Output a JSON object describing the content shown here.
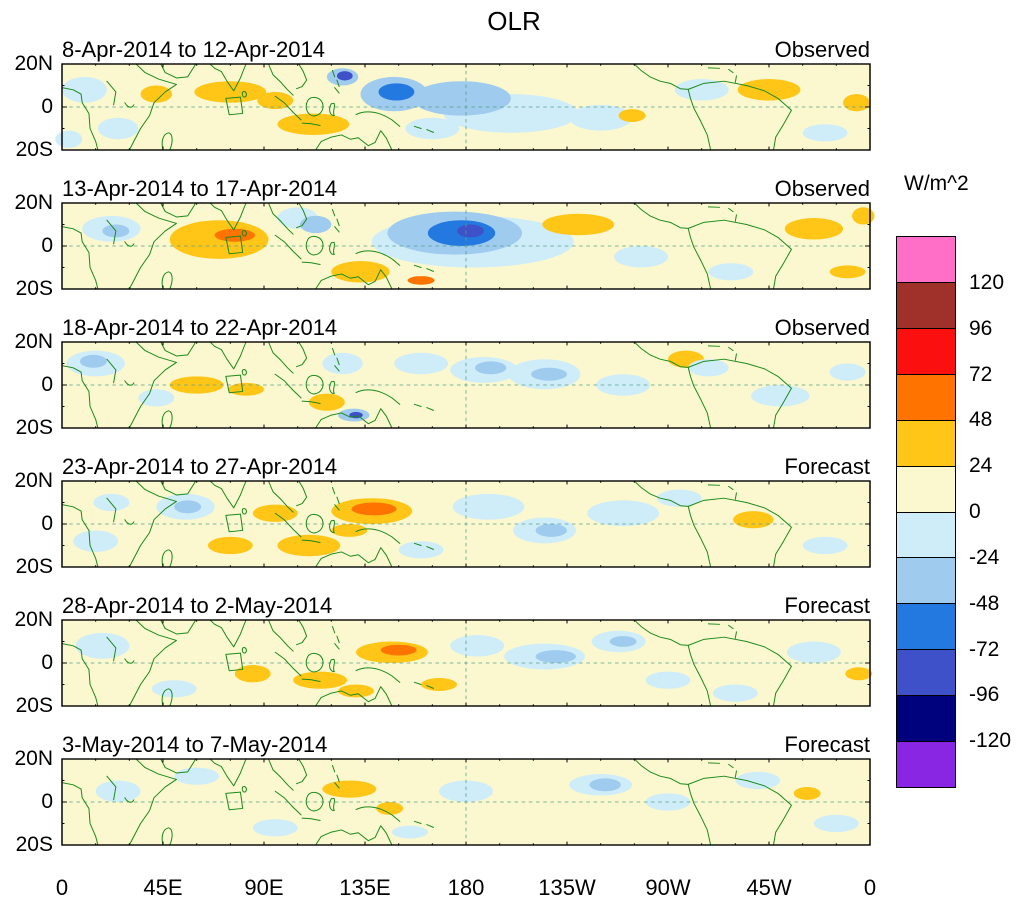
{
  "title": "OLR",
  "colorbar": {
    "unit": "W/m^2",
    "tick_labels": [
      "120",
      "96",
      "72",
      "48",
      "24",
      "0",
      "-24",
      "-48",
      "-72",
      "-96",
      "-120"
    ],
    "segment_colors_top_to_bottom": [
      "#FF6FC8",
      "#A0302A",
      "#FB0F0F",
      "#FF7300",
      "#FFC618",
      "#FBF8CF",
      "#CFECF9",
      "#9FCBEF",
      "#2479E0",
      "#3F51C8",
      "#00017D",
      "#8926E3"
    ]
  },
  "axes": {
    "x_ticks": [
      "0",
      "45E",
      "90E",
      "135E",
      "180",
      "135W",
      "90W",
      "45W",
      "0"
    ],
    "y_ticks": [
      "20N",
      "0",
      "20S"
    ]
  },
  "chart_data": {
    "type": "heatmap",
    "subtype": "filled-contour anomaly maps, 6 pentad panels",
    "title": "OLR",
    "units": "W/m^2",
    "lon_range_deg_east": [
      0,
      360
    ],
    "lat_range_deg_north": [
      -20,
      20
    ],
    "contour_interval": 24,
    "contour_levels": [
      -120,
      -96,
      -72,
      -48,
      -24,
      0,
      24,
      48,
      72,
      96,
      120
    ],
    "level_band_colors": {
      "-120": "#00017D",
      "-96": "#3F51C8",
      "-72": "#2479E0",
      "-48": "#9FCBEF",
      "-24": "#CFECF9",
      "24": "#FFC618",
      "48": "#FF7300",
      "72": "#FB0F0F"
    },
    "background_band_color": "#FBF8CF",
    "coastline_color": "#1C8A1C",
    "anomaly_format": "[lon_deg_east, lat_deg_north, lon_radius_deg, lat_radius_deg, band_wm2]",
    "panels": [
      {
        "date_range": "8-Apr-2014 to 12-Apr-2014",
        "type_label": "Observed",
        "anomalies": [
          [
            10,
            8,
            10,
            6,
            -24
          ],
          [
            25,
            -10,
            9,
            5,
            -24
          ],
          [
            3,
            -15,
            6,
            4,
            -24
          ],
          [
            42,
            6,
            7,
            4,
            24
          ],
          [
            75,
            7,
            16,
            5,
            24
          ],
          [
            95,
            3,
            8,
            4,
            24
          ],
          [
            112,
            -8,
            16,
            5,
            24
          ],
          [
            125,
            14,
            7,
            4,
            -48
          ],
          [
            126,
            14.5,
            3.5,
            2.2,
            -96
          ],
          [
            148,
            6,
            15,
            8,
            -48
          ],
          [
            149,
            7,
            8,
            4,
            -72
          ],
          [
            178,
            4,
            22,
            8,
            -48
          ],
          [
            200,
            -3,
            30,
            9,
            -24
          ],
          [
            165,
            -10,
            12,
            5,
            -24
          ],
          [
            240,
            -5,
            14,
            6,
            -24
          ],
          [
            254,
            -4,
            6,
            3,
            24
          ],
          [
            285,
            8,
            12,
            5,
            -24
          ],
          [
            315,
            8,
            14,
            5,
            24
          ],
          [
            340,
            -12,
            10,
            4,
            -24
          ],
          [
            354,
            2,
            6,
            4,
            24
          ]
        ]
      },
      {
        "date_range": "13-Apr-2014 to 17-Apr-2014",
        "type_label": "Observed",
        "anomalies": [
          [
            22,
            8,
            13,
            6,
            -24
          ],
          [
            24,
            7,
            6,
            3,
            -48
          ],
          [
            70,
            3,
            22,
            9,
            24
          ],
          [
            77,
            5,
            9,
            3,
            48
          ],
          [
            105,
            13,
            9,
            5,
            -24
          ],
          [
            113,
            10,
            7,
            4,
            -48
          ],
          [
            133,
            -12,
            13,
            5,
            24
          ],
          [
            160,
            -16,
            6,
            2,
            48
          ],
          [
            183,
            2,
            45,
            12,
            -24
          ],
          [
            175,
            6,
            30,
            10,
            -48
          ],
          [
            178,
            6,
            15,
            6,
            -72
          ],
          [
            182,
            7,
            6,
            3,
            -96
          ],
          [
            230,
            10,
            16,
            5,
            24
          ],
          [
            258,
            -5,
            12,
            5,
            -24
          ],
          [
            298,
            -12,
            10,
            4,
            -24
          ],
          [
            335,
            8,
            13,
            5,
            24
          ],
          [
            350,
            -12,
            8,
            3,
            24
          ],
          [
            357,
            14,
            5,
            4,
            24
          ]
        ]
      },
      {
        "date_range": "18-Apr-2014 to 22-Apr-2014",
        "type_label": "Observed",
        "anomalies": [
          [
            15,
            10,
            13,
            6,
            -24
          ],
          [
            14,
            11,
            6,
            3,
            -48
          ],
          [
            42,
            -6,
            8,
            4,
            -24
          ],
          [
            60,
            0,
            12,
            4,
            24
          ],
          [
            82,
            -2,
            8,
            3,
            24
          ],
          [
            118,
            -8,
            8,
            4,
            24
          ],
          [
            130,
            -14,
            7,
            3,
            -48
          ],
          [
            131,
            -14,
            3,
            1.5,
            -96
          ],
          [
            125,
            10,
            9,
            5,
            -24
          ],
          [
            160,
            10,
            12,
            5,
            -24
          ],
          [
            188,
            7,
            15,
            6,
            -24
          ],
          [
            191,
            8,
            7,
            3,
            -48
          ],
          [
            215,
            5,
            16,
            7,
            -24
          ],
          [
            217,
            5,
            8,
            3,
            -48
          ],
          [
            250,
            0,
            12,
            5,
            -24
          ],
          [
            278,
            12,
            8,
            4,
            24
          ],
          [
            288,
            8,
            9,
            4,
            -24
          ],
          [
            320,
            -5,
            13,
            5,
            -24
          ],
          [
            350,
            6,
            8,
            4,
            -24
          ]
        ]
      },
      {
        "date_range": "23-Apr-2014 to 27-Apr-2014",
        "type_label": "Forecast",
        "anomalies": [
          [
            15,
            -8,
            10,
            5,
            -24
          ],
          [
            22,
            10,
            8,
            4,
            -24
          ],
          [
            55,
            8,
            13,
            6,
            -24
          ],
          [
            56,
            8,
            6,
            3,
            -48
          ],
          [
            75,
            -10,
            10,
            4,
            24
          ],
          [
            95,
            5,
            10,
            4,
            24
          ],
          [
            110,
            -10,
            14,
            5,
            24
          ],
          [
            128,
            -3,
            8,
            3,
            24
          ],
          [
            138,
            6,
            18,
            6,
            24
          ],
          [
            139,
            7,
            10,
            3,
            48
          ],
          [
            160,
            -12,
            10,
            4,
            -24
          ],
          [
            190,
            8,
            16,
            6,
            -24
          ],
          [
            215,
            -3,
            14,
            6,
            -24
          ],
          [
            218,
            -3,
            7,
            3,
            -48
          ],
          [
            250,
            5,
            16,
            6,
            -24
          ],
          [
            275,
            12,
            10,
            4,
            -24
          ],
          [
            308,
            2,
            9,
            4,
            24
          ],
          [
            340,
            -10,
            10,
            4,
            -24
          ]
        ]
      },
      {
        "date_range": "28-Apr-2014 to 2-May-2014",
        "type_label": "Forecast",
        "anomalies": [
          [
            18,
            8,
            12,
            6,
            -24
          ],
          [
            50,
            -12,
            10,
            4,
            -24
          ],
          [
            85,
            -5,
            8,
            4,
            24
          ],
          [
            115,
            -8,
            12,
            4,
            24
          ],
          [
            131,
            -13,
            8,
            3,
            24
          ],
          [
            147,
            5,
            16,
            5,
            24
          ],
          [
            150,
            6,
            8,
            2.5,
            48
          ],
          [
            168,
            -10,
            8,
            3,
            24
          ],
          [
            185,
            8,
            12,
            5,
            -24
          ],
          [
            215,
            3,
            18,
            6,
            -24
          ],
          [
            220,
            3,
            9,
            3,
            -48
          ],
          [
            248,
            10,
            12,
            5,
            -24
          ],
          [
            250,
            10,
            6,
            2.5,
            -48
          ],
          [
            270,
            -8,
            10,
            4,
            -24
          ],
          [
            300,
            -14,
            10,
            4,
            -24
          ],
          [
            335,
            5,
            12,
            5,
            -24
          ],
          [
            355,
            -5,
            6,
            3,
            24
          ]
        ]
      },
      {
        "date_range": "3-May-2014 to 7-May-2014",
        "type_label": "Forecast",
        "anomalies": [
          [
            25,
            5,
            10,
            5,
            -24
          ],
          [
            60,
            12,
            10,
            4,
            -24
          ],
          [
            95,
            -12,
            10,
            4,
            -24
          ],
          [
            128,
            6,
            12,
            4,
            24
          ],
          [
            146,
            -3,
            6,
            3,
            24
          ],
          [
            155,
            -14,
            8,
            3,
            -24
          ],
          [
            180,
            5,
            12,
            5,
            -24
          ],
          [
            240,
            8,
            14,
            5,
            -24
          ],
          [
            242,
            8,
            7,
            3,
            -48
          ],
          [
            270,
            0,
            10,
            4,
            -24
          ],
          [
            310,
            10,
            10,
            4,
            -24
          ],
          [
            332,
            4,
            6,
            3,
            24
          ],
          [
            345,
            -10,
            10,
            4,
            -24
          ]
        ]
      }
    ]
  }
}
